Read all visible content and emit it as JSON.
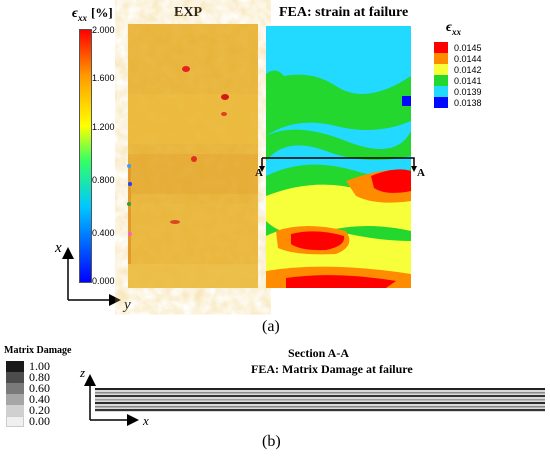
{
  "panel_a": {
    "colorbar_left": {
      "label": "ϵxx [%]",
      "ticks": [
        "2.000",
        "1.600",
        "1.200",
        "0.800",
        "0.400",
        "0.000"
      ],
      "gradient": [
        "#0000ff",
        "#00c8ff",
        "#33ff66",
        "#ffff00",
        "#ff9900",
        "#ff0000"
      ]
    },
    "axes": {
      "x": "x",
      "y": "y"
    },
    "exp_title": "EXP",
    "fea_title": "FEA: strain at failure",
    "section_marks": [
      "A",
      "A"
    ],
    "legend_right": {
      "label": "ϵxx",
      "items": [
        {
          "value": "0.0145",
          "color": "#ff0000"
        },
        {
          "value": "0.0144",
          "color": "#ff8c00"
        },
        {
          "value": "0.0142",
          "color": "#f7ff3a"
        },
        {
          "value": "0.0141",
          "color": "#23d72f"
        },
        {
          "value": "0.0139",
          "color": "#22d9ff"
        },
        {
          "value": "0.0138",
          "color": "#0008ff"
        }
      ]
    },
    "caption": "(a)"
  },
  "panel_b": {
    "legend": {
      "title": "Matrix Damage",
      "items": [
        {
          "value": "1.00",
          "color": "#1a1a1a"
        },
        {
          "value": "0.80",
          "color": "#4d4d4d"
        },
        {
          "value": "0.60",
          "color": "#7a7a7a"
        },
        {
          "value": "0.40",
          "color": "#a6a6a6"
        },
        {
          "value": "0.20",
          "color": "#d0d0d0"
        },
        {
          "value": "0.00",
          "color": "#f0f0f0"
        }
      ]
    },
    "section_title": "Section A-A",
    "subtitle": "FEA: Matrix Damage at failure",
    "axes": {
      "z": "z",
      "x": "x"
    },
    "caption": "(b)"
  }
}
